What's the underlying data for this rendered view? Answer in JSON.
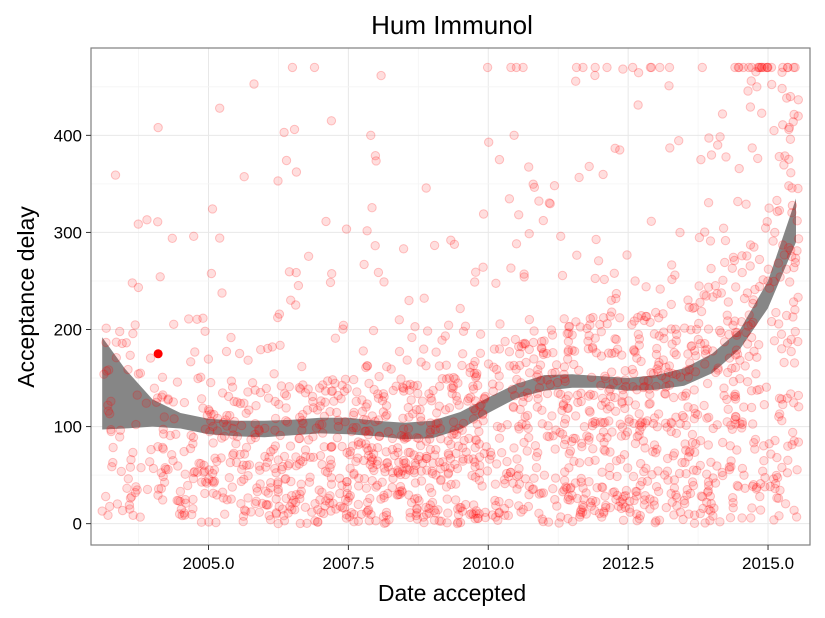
{
  "chart_data": {
    "type": "scatter",
    "title": "Hum Immunol",
    "xlabel": "Date accepted",
    "ylabel": "Acceptance delay",
    "xlim": [
      2002.9,
      2015.75
    ],
    "ylim": [
      -22,
      490
    ],
    "x_ticks": [
      2005.0,
      2007.5,
      2010.0,
      2012.5,
      2015.0
    ],
    "x_tick_labels": [
      "2005.0",
      "2007.5",
      "2010.0",
      "2012.5",
      "2015.0"
    ],
    "y_ticks": [
      0,
      100,
      200,
      300,
      400
    ],
    "y_tick_labels": [
      "0",
      "100",
      "200",
      "300",
      "400"
    ],
    "grid": true,
    "legend": "none",
    "colors": {
      "points": "#ff0000",
      "highlight": "#ff0000",
      "smooth_band": "#808080"
    },
    "highlight_point": {
      "x": 2004.1,
      "y": 175
    },
    "smooth": {
      "x": [
        2003.1,
        2003.5,
        2004.0,
        2004.5,
        2005.0,
        2005.5,
        2006.0,
        2006.5,
        2007.0,
        2007.5,
        2008.0,
        2008.5,
        2009.0,
        2009.5,
        2010.0,
        2010.5,
        2011.0,
        2011.5,
        2012.0,
        2012.5,
        2013.0,
        2013.5,
        2014.0,
        2014.5,
        2015.0,
        2015.5
      ],
      "upper": [
        192,
        160,
        128,
        114,
        108,
        106,
        106,
        107,
        109,
        109,
        106,
        104,
        106,
        115,
        130,
        144,
        153,
        154,
        152,
        150,
        153,
        160,
        175,
        200,
        250,
        335
      ],
      "lower": [
        97,
        98,
        100,
        98,
        92,
        90,
        89,
        91,
        93,
        92,
        90,
        87,
        88,
        97,
        114,
        129,
        137,
        140,
        140,
        137,
        138,
        142,
        155,
        180,
        222,
        290
      ]
    },
    "scatter": {
      "n": 1800,
      "seed": 20240611,
      "x_start": 2003.1,
      "x_end": 2015.55,
      "extra_points": [
        {
          "x": 2003.9,
          "y": 313
        },
        {
          "x": 2004.1,
          "y": 408
        },
        {
          "x": 2005.2,
          "y": 428
        },
        {
          "x": 2006.5,
          "y": 470
        },
        {
          "x": 2007.9,
          "y": 400
        },
        {
          "x": 2014.7,
          "y": 456
        },
        {
          "x": 2014.8,
          "y": 450
        },
        {
          "x": 2015.25,
          "y": 465
        },
        {
          "x": 2015.4,
          "y": 440
        },
        {
          "x": 2015.45,
          "y": 414
        },
        {
          "x": 2015.4,
          "y": 396
        },
        {
          "x": 2014.1,
          "y": 390
        },
        {
          "x": 2012.35,
          "y": 385
        },
        {
          "x": 2010.2,
          "y": 375
        },
        {
          "x": 2013.8,
          "y": 375
        },
        {
          "x": 2003.1,
          "y": 13
        },
        {
          "x": 2012.7,
          "y": 5
        },
        {
          "x": 2007.6,
          "y": 2
        }
      ]
    }
  }
}
